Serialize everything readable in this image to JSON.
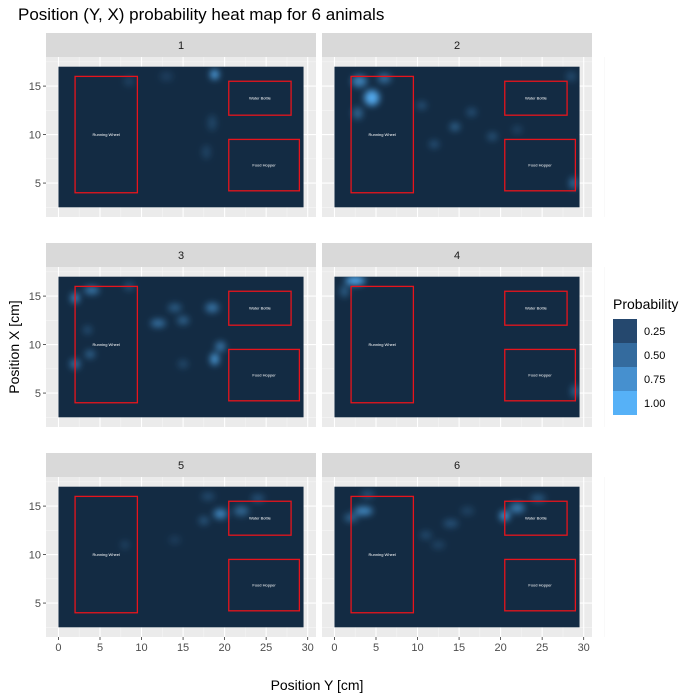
{
  "chart_data": {
    "type": "heatmap",
    "title": "Position (Y, X) probability heat map for 6 animals",
    "xlabel": "Position Y [cm]",
    "ylabel": "Position X [cm]",
    "xlim": [
      -1.5,
      31
    ],
    "ylim": [
      1.5,
      18
    ],
    "x_ticks": [
      0,
      5,
      10,
      15,
      20,
      25,
      30
    ],
    "y_ticks": [
      5,
      10,
      15
    ],
    "grid": true,
    "legend": {
      "title": "Probability",
      "position": "right",
      "entries": [
        {
          "label": "0.25",
          "color": "#25486e"
        },
        {
          "label": "0.50",
          "color": "#346b9e"
        },
        {
          "label": "0.75",
          "color": "#4690cf"
        },
        {
          "label": "1.00",
          "color": "#56b1f7"
        }
      ]
    },
    "colors": {
      "low": "#132b43",
      "high": "#56b1f7",
      "region_outline": "#e8141c"
    },
    "field": {
      "x": [
        0,
        29.5
      ],
      "y": [
        2.5,
        17
      ]
    },
    "regions": [
      {
        "name": "Running Wheel",
        "x": [
          2,
          9.5
        ],
        "y": [
          4,
          16
        ]
      },
      {
        "name": "Water Bottle",
        "x": [
          20.5,
          28
        ],
        "y": [
          12,
          15.5
        ]
      },
      {
        "name": "Food Hopper",
        "x": [
          20.5,
          29
        ],
        "y": [
          4.2,
          9.5
        ]
      }
    ],
    "panels": [
      {
        "label": "1",
        "hotspots": [
          {
            "x": 18.8,
            "y": 16.2,
            "p": 0.95,
            "sx": 0.5,
            "sy": 0.5
          },
          {
            "x": 18.5,
            "y": 11.2,
            "p": 0.22,
            "sx": 0.5,
            "sy": 0.8
          },
          {
            "x": 17.8,
            "y": 8.2,
            "p": 0.2,
            "sx": 0.5,
            "sy": 0.7
          },
          {
            "x": 8.5,
            "y": 15.5,
            "p": 0.18,
            "sx": 0.6,
            "sy": 0.5
          },
          {
            "x": 13,
            "y": 16,
            "p": 0.15,
            "sx": 0.8,
            "sy": 0.5
          }
        ]
      },
      {
        "label": "2",
        "hotspots": [
          {
            "x": 4.5,
            "y": 13.8,
            "p": 0.95,
            "sx": 0.9,
            "sy": 0.8
          },
          {
            "x": 3,
            "y": 15.5,
            "p": 0.65,
            "sx": 0.9,
            "sy": 0.6
          },
          {
            "x": 6,
            "y": 15.8,
            "p": 0.5,
            "sx": 0.8,
            "sy": 0.5
          },
          {
            "x": 2.8,
            "y": 12.2,
            "p": 0.45,
            "sx": 0.6,
            "sy": 0.6
          },
          {
            "x": 10.5,
            "y": 13,
            "p": 0.3,
            "sx": 0.6,
            "sy": 0.4
          },
          {
            "x": 14.5,
            "y": 10.8,
            "p": 0.45,
            "sx": 0.6,
            "sy": 0.4
          },
          {
            "x": 16.5,
            "y": 12.3,
            "p": 0.3,
            "sx": 0.6,
            "sy": 0.4
          },
          {
            "x": 12,
            "y": 9,
            "p": 0.3,
            "sx": 0.6,
            "sy": 0.4
          },
          {
            "x": 19,
            "y": 9.8,
            "p": 0.32,
            "sx": 0.6,
            "sy": 0.4
          },
          {
            "x": 28.8,
            "y": 5,
            "p": 0.5,
            "sx": 0.5,
            "sy": 0.6
          },
          {
            "x": 28.5,
            "y": 16,
            "p": 0.25,
            "sx": 0.6,
            "sy": 0.5
          },
          {
            "x": 22,
            "y": 10.5,
            "p": 0.2,
            "sx": 0.6,
            "sy": 0.4
          }
        ]
      },
      {
        "label": "3",
        "hotspots": [
          {
            "x": 18.8,
            "y": 8.5,
            "p": 0.85,
            "sx": 0.5,
            "sy": 0.6
          },
          {
            "x": 19.5,
            "y": 9.8,
            "p": 0.6,
            "sx": 0.6,
            "sy": 0.5
          },
          {
            "x": 2,
            "y": 14.8,
            "p": 0.75,
            "sx": 0.5,
            "sy": 0.5
          },
          {
            "x": 4,
            "y": 15.6,
            "p": 0.6,
            "sx": 0.9,
            "sy": 0.4
          },
          {
            "x": 12,
            "y": 12.2,
            "p": 0.55,
            "sx": 0.9,
            "sy": 0.4
          },
          {
            "x": 15,
            "y": 12.5,
            "p": 0.45,
            "sx": 0.7,
            "sy": 0.4
          },
          {
            "x": 14,
            "y": 13.8,
            "p": 0.4,
            "sx": 0.8,
            "sy": 0.4
          },
          {
            "x": 18.5,
            "y": 13.8,
            "p": 0.55,
            "sx": 0.8,
            "sy": 0.5
          },
          {
            "x": 3.8,
            "y": 9,
            "p": 0.45,
            "sx": 0.6,
            "sy": 0.4
          },
          {
            "x": 2,
            "y": 8,
            "p": 0.55,
            "sx": 0.6,
            "sy": 0.5
          },
          {
            "x": 3.5,
            "y": 11.5,
            "p": 0.3,
            "sx": 0.5,
            "sy": 0.4
          },
          {
            "x": 8.5,
            "y": 16,
            "p": 0.3,
            "sx": 0.6,
            "sy": 0.4
          },
          {
            "x": 15,
            "y": 8,
            "p": 0.25,
            "sx": 0.6,
            "sy": 0.4
          }
        ]
      },
      {
        "label": "4",
        "hotspots": [
          {
            "x": 2.5,
            "y": 16.6,
            "p": 0.95,
            "sx": 1.2,
            "sy": 0.45
          },
          {
            "x": 29,
            "y": 5.2,
            "p": 0.45,
            "sx": 0.5,
            "sy": 0.6
          },
          {
            "x": 1.2,
            "y": 15.5,
            "p": 0.4,
            "sx": 0.5,
            "sy": 0.6
          }
        ]
      },
      {
        "label": "5",
        "hotspots": [
          {
            "x": 19.5,
            "y": 14.2,
            "p": 0.7,
            "sx": 0.8,
            "sy": 0.5
          },
          {
            "x": 22,
            "y": 14.5,
            "p": 0.45,
            "sx": 0.9,
            "sy": 0.5
          },
          {
            "x": 17.5,
            "y": 13.5,
            "p": 0.35,
            "sx": 0.6,
            "sy": 0.4
          },
          {
            "x": 24,
            "y": 15.8,
            "p": 0.3,
            "sx": 0.8,
            "sy": 0.4
          },
          {
            "x": 18,
            "y": 16,
            "p": 0.25,
            "sx": 0.8,
            "sy": 0.4
          },
          {
            "x": 8,
            "y": 11,
            "p": 0.2,
            "sx": 0.5,
            "sy": 0.4
          },
          {
            "x": 14,
            "y": 11.5,
            "p": 0.15,
            "sx": 0.7,
            "sy": 0.4
          }
        ]
      },
      {
        "label": "6",
        "hotspots": [
          {
            "x": 3.5,
            "y": 14.5,
            "p": 0.7,
            "sx": 1.1,
            "sy": 0.45
          },
          {
            "x": 2,
            "y": 13.8,
            "p": 0.45,
            "sx": 0.8,
            "sy": 0.4
          },
          {
            "x": 20.5,
            "y": 14,
            "p": 0.85,
            "sx": 0.6,
            "sy": 0.5
          },
          {
            "x": 22,
            "y": 14.8,
            "p": 0.6,
            "sx": 0.9,
            "sy": 0.5
          },
          {
            "x": 24.5,
            "y": 15.8,
            "p": 0.35,
            "sx": 0.9,
            "sy": 0.4
          },
          {
            "x": 14,
            "y": 13.2,
            "p": 0.3,
            "sx": 0.9,
            "sy": 0.4
          },
          {
            "x": 11,
            "y": 12,
            "p": 0.25,
            "sx": 0.7,
            "sy": 0.4
          },
          {
            "x": 12.5,
            "y": 11,
            "p": 0.2,
            "sx": 0.8,
            "sy": 0.4
          },
          {
            "x": 4,
            "y": 16.2,
            "p": 0.3,
            "sx": 0.8,
            "sy": 0.4
          },
          {
            "x": 16,
            "y": 14.5,
            "p": 0.2,
            "sx": 0.8,
            "sy": 0.4
          }
        ]
      }
    ]
  }
}
